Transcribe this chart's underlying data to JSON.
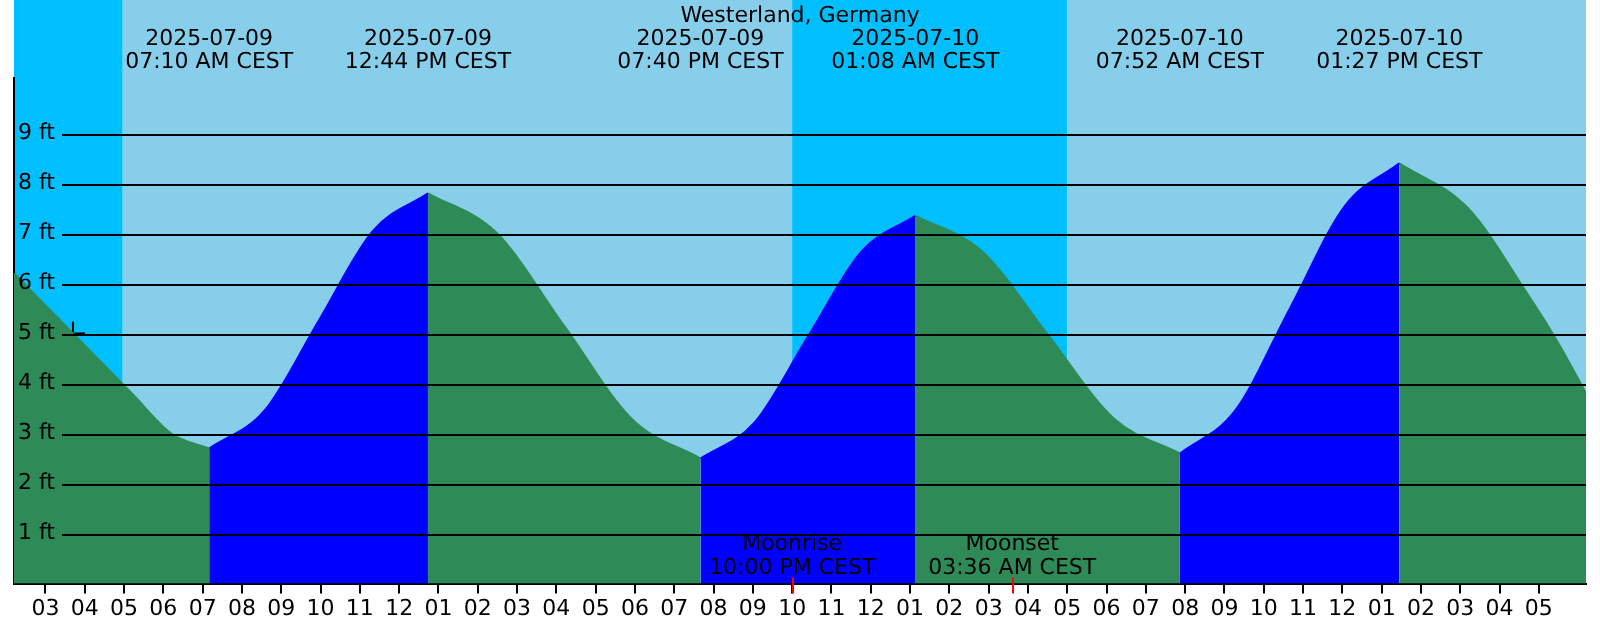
{
  "chart_data": {
    "type": "area",
    "title": "Westerland, Germany",
    "xlim": [
      "2025-07-09T02:12",
      "2025-07-10T18:12"
    ],
    "ylim": [
      0,
      10.1
    ],
    "x2lim": [
      "2025-07-09T02:12",
      "2025-07-10T18:12"
    ],
    "x2ticks": [
      {
        "value": "2025-07-09T07:10",
        "label": "2025-07-09\n07:10 AM CEST"
      },
      {
        "value": "2025-07-09T12:44",
        "label": "2025-07-09\n12:44 PM CEST"
      },
      {
        "value": "2025-07-09T19:40",
        "label": "2025-07-09\n07:40 PM CEST"
      },
      {
        "value": "2025-07-10T01:08",
        "label": "2025-07-10\n01:08 AM CEST"
      },
      {
        "value": "2025-07-10T07:52",
        "label": "2025-07-10\n07:52 AM CEST"
      },
      {
        "value": "2025-07-10T13:27",
        "label": "2025-07-10\n01:27 PM CEST"
      }
    ],
    "xticks": [
      {
        "value": "2025-07-09T03:00",
        "label": "03"
      },
      {
        "value": "2025-07-09T04:00",
        "label": "04"
      },
      {
        "value": "2025-07-09T05:00",
        "label": "05"
      },
      {
        "value": "2025-07-09T06:00",
        "label": "06"
      },
      {
        "value": "2025-07-09T07:00",
        "label": "07"
      },
      {
        "value": "2025-07-09T08:00",
        "label": "08"
      },
      {
        "value": "2025-07-09T09:00",
        "label": "09"
      },
      {
        "value": "2025-07-09T10:00",
        "label": "10"
      },
      {
        "value": "2025-07-09T11:00",
        "label": "11"
      },
      {
        "value": "2025-07-09T12:00",
        "label": "12"
      },
      {
        "value": "2025-07-09T13:00",
        "label": "01"
      },
      {
        "value": "2025-07-09T14:00",
        "label": "02"
      },
      {
        "value": "2025-07-09T15:00",
        "label": "03"
      },
      {
        "value": "2025-07-09T16:00",
        "label": "04"
      },
      {
        "value": "2025-07-09T17:00",
        "label": "05"
      },
      {
        "value": "2025-07-09T18:00",
        "label": "06"
      },
      {
        "value": "2025-07-09T19:00",
        "label": "07"
      },
      {
        "value": "2025-07-09T20:00",
        "label": "08"
      },
      {
        "value": "2025-07-09T21:00",
        "label": "09"
      },
      {
        "value": "2025-07-09T22:00",
        "label": "10"
      },
      {
        "value": "2025-07-09T23:00",
        "label": "11"
      },
      {
        "value": "2025-07-10T00:00",
        "label": "12"
      },
      {
        "value": "2025-07-10T01:00",
        "label": "01"
      },
      {
        "value": "2025-07-10T02:00",
        "label": "02"
      },
      {
        "value": "2025-07-10T03:00",
        "label": "03"
      },
      {
        "value": "2025-07-10T04:00",
        "label": "04"
      },
      {
        "value": "2025-07-10T05:00",
        "label": "05"
      },
      {
        "value": "2025-07-10T06:00",
        "label": "06"
      },
      {
        "value": "2025-07-10T07:00",
        "label": "07"
      },
      {
        "value": "2025-07-10T08:00",
        "label": "08"
      },
      {
        "value": "2025-07-10T09:00",
        "label": "09"
      },
      {
        "value": "2025-07-10T10:00",
        "label": "10"
      },
      {
        "value": "2025-07-10T11:00",
        "label": "11"
      },
      {
        "value": "2025-07-10T12:00",
        "label": "12"
      },
      {
        "value": "2025-07-10T13:00",
        "label": "01"
      },
      {
        "value": "2025-07-10T14:00",
        "label": "02"
      },
      {
        "value": "2025-07-10T15:00",
        "label": "03"
      },
      {
        "value": "2025-07-10T16:00",
        "label": "04"
      },
      {
        "value": "2025-07-10T17:00",
        "label": "05"
      }
    ],
    "yticks": [
      {
        "value": 1,
        "label": "1 ft"
      },
      {
        "value": 2,
        "label": "2 ft"
      },
      {
        "value": 3,
        "label": "3 ft"
      },
      {
        "value": 4,
        "label": "4 ft"
      },
      {
        "value": 5,
        "label": "5 ft"
      },
      {
        "value": 6,
        "label": "6 ft"
      },
      {
        "value": 7,
        "label": "7 ft"
      },
      {
        "value": 8,
        "label": "8 ft"
      },
      {
        "value": 9,
        "label": "9 ft"
      }
    ],
    "grid": "y",
    "legend": false,
    "bands": [
      {
        "axis": "x",
        "from": "2025-07-09T02:12",
        "to": "2025-07-09T04:58",
        "color": "#00bfff"
      },
      {
        "axis": "x",
        "from": "2025-07-09T04:58",
        "to": "2025-07-09T22:00",
        "color": "#87ceeb"
      },
      {
        "axis": "x",
        "from": "2025-07-09T22:00",
        "to": "2025-07-10T05:00",
        "color": "#00bfff"
      },
      {
        "axis": "x",
        "from": "2025-07-10T05:00",
        "to": "2025-07-10T18:12",
        "color": "#87ceeb"
      }
    ],
    "annotations": [
      {
        "text": "Moonrise\n10:00 PM CEST",
        "x": "2025-07-09T22:00",
        "y": 0
      },
      {
        "text": "Moonset\n03:36 AM CEST",
        "x": "2025-07-10T03:36",
        "y": 0
      }
    ],
    "series": [
      {
        "color": "#2e8b57",
        "x": [
          "2025-07-09T02:12",
          "2025-07-09T03:42",
          "2025-07-09T05:12",
          "2025-07-09T06:12",
          "2025-07-09T07:10"
        ],
        "values": [
          6.2,
          5.0,
          3.8,
          3.0,
          2.7
        ]
      },
      {
        "color": "#0000ff",
        "x": [
          "2025-07-09T07:10",
          "2025-07-09T08:34",
          "2025-07-09T09:57",
          "2025-07-09T11:20",
          "2025-07-09T12:44"
        ],
        "values": [
          2.7,
          3.45,
          5.25,
          7.05,
          7.8
        ]
      },
      {
        "color": "#2e8b57",
        "x": [
          "2025-07-09T12:44",
          "2025-07-09T14:28",
          "2025-07-09T16:12",
          "2025-07-09T17:56",
          "2025-07-09T19:40"
        ],
        "values": [
          7.8,
          7.02,
          5.15,
          3.28,
          2.5
        ]
      },
      {
        "color": "#0000ff",
        "x": [
          "2025-07-09T19:40",
          "2025-07-09T21:02",
          "2025-07-09T22:24",
          "2025-07-09T23:46",
          "2025-07-10T01:08"
        ],
        "values": [
          2.5,
          3.21,
          4.93,
          6.64,
          7.35
        ]
      },
      {
        "color": "#2e8b57",
        "x": [
          "2025-07-10T01:08",
          "2025-07-10T02:49",
          "2025-07-10T04:30",
          "2025-07-10T06:11",
          "2025-07-10T07:52"
        ],
        "values": [
          7.35,
          6.65,
          4.98,
          3.3,
          2.6
        ]
      },
      {
        "color": "#0000ff",
        "x": [
          "2025-07-10T07:52",
          "2025-07-10T09:16",
          "2025-07-10T10:40",
          "2025-07-10T12:04",
          "2025-07-10T13:27"
        ],
        "values": [
          2.6,
          3.45,
          5.5,
          7.55,
          8.4
        ]
      },
      {
        "color": "#2e8b57",
        "x": [
          "2025-07-10T13:27",
          "2025-07-10T15:12",
          "2025-07-10T16:42",
          "2025-07-10T17:30",
          "2025-07-10T18:12"
        ],
        "values": [
          8.4,
          7.5,
          5.8,
          4.8,
          3.8
        ]
      },
      {
        "type": "scatter",
        "marker": "cross",
        "color": "#000000",
        "x": [
          "2025-07-09T03:42"
        ],
        "values": [
          5.0
        ]
      }
    ]
  }
}
